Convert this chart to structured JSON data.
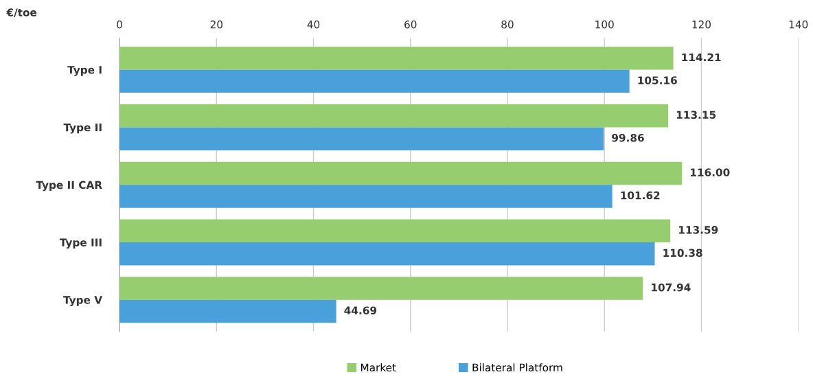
{
  "chart_data": {
    "type": "bar",
    "orientation": "horizontal",
    "xlabel": "€/toe",
    "categories": [
      "Type I",
      "Type II",
      "Type II CAR",
      "Type III",
      "Type V"
    ],
    "series": [
      {
        "name": "Market",
        "color": "#96cd6e",
        "values": [
          114.21,
          113.15,
          116.0,
          113.59,
          107.94
        ],
        "value_labels": [
          "114.21",
          "113.15",
          "116.00",
          "113.59",
          "107.94"
        ]
      },
      {
        "name": "Bilateral Platform",
        "color": "#4aa0d8",
        "values": [
          105.16,
          99.86,
          101.62,
          110.38,
          44.69
        ],
        "value_labels": [
          "105.16",
          "99.86",
          "101.62",
          "110.38",
          "44.69"
        ]
      }
    ],
    "xlim": [
      0,
      140
    ],
    "xticks": [
      0,
      20,
      40,
      60,
      80,
      100,
      120,
      140
    ],
    "grid": "x",
    "legend": "bottom"
  }
}
